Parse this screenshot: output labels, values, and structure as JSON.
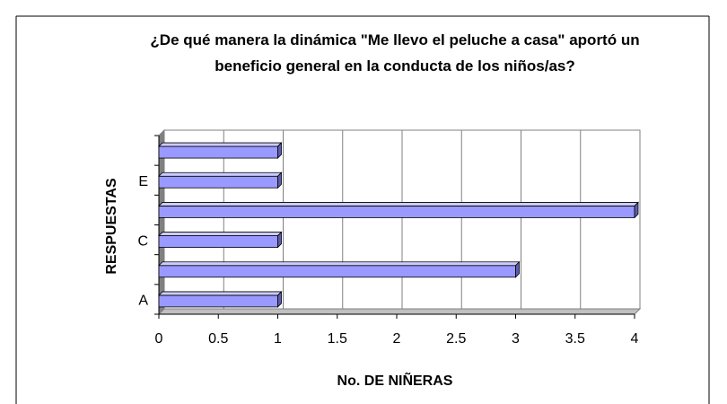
{
  "chart_data": {
    "type": "bar",
    "orientation": "horizontal",
    "title": "¿De qué manera la dinámica \"Me llevo el peluche a casa\" aportó un beneficio general en la conducta de los niños/as?",
    "x_label": "No. DE NIÑERAS",
    "y_label": "RESPUESTAS",
    "categories": [
      "A",
      null,
      "C",
      null,
      "E",
      null
    ],
    "values": [
      1,
      3,
      1,
      4,
      1,
      1
    ],
    "color": "#9999ff",
    "xlim": [
      0,
      4
    ],
    "xticks": [
      0,
      0.5,
      1,
      1.5,
      2,
      2.5,
      3,
      3.5,
      4
    ],
    "grid": true
  }
}
